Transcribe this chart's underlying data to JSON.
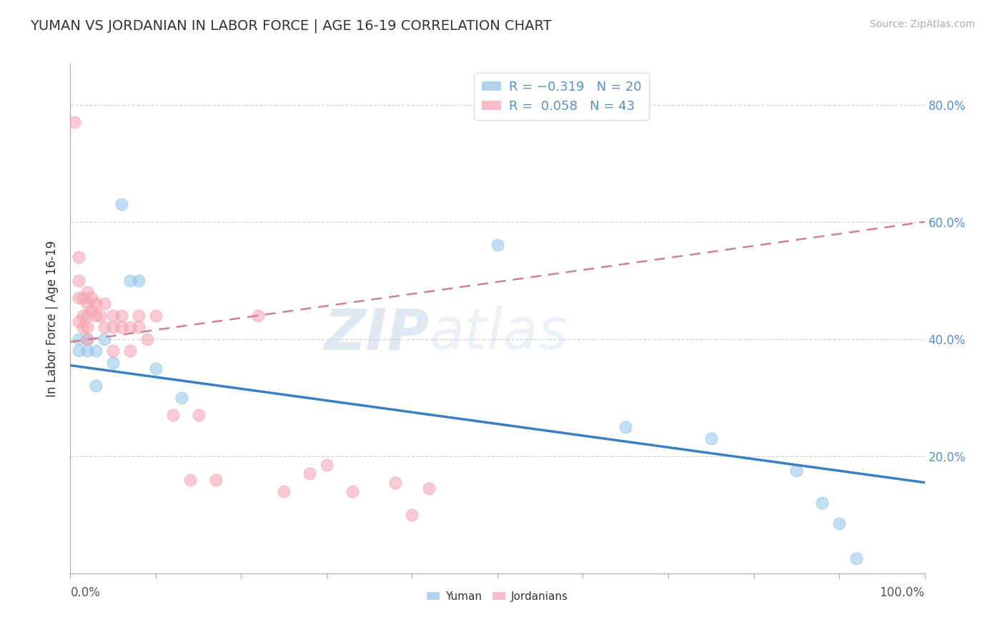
{
  "title": "YUMAN VS JORDANIAN IN LABOR FORCE | AGE 16-19 CORRELATION CHART",
  "source_text": "Source: ZipAtlas.com",
  "ylabel": "In Labor Force | Age 16-19",
  "xlim": [
    0.0,
    1.0
  ],
  "ylim": [
    0.0,
    0.87
  ],
  "xtick_positions": [
    0.0,
    0.1,
    0.2,
    0.3,
    0.4,
    0.5,
    0.6,
    0.7,
    0.8,
    0.9,
    1.0
  ],
  "ytick_positions": [
    0.0,
    0.2,
    0.4,
    0.6,
    0.8
  ],
  "watermark_text": "ZIP",
  "watermark_text2": "atlas",
  "yuman_x": [
    0.01,
    0.01,
    0.02,
    0.02,
    0.03,
    0.03,
    0.04,
    0.05,
    0.06,
    0.07,
    0.08,
    0.1,
    0.13,
    0.5,
    0.65,
    0.75,
    0.85,
    0.88,
    0.9,
    0.92
  ],
  "yuman_y": [
    0.38,
    0.4,
    0.38,
    0.4,
    0.32,
    0.38,
    0.4,
    0.36,
    0.63,
    0.5,
    0.5,
    0.35,
    0.3,
    0.56,
    0.25,
    0.23,
    0.175,
    0.12,
    0.085,
    0.025
  ],
  "jordanian_x": [
    0.005,
    0.01,
    0.01,
    0.01,
    0.01,
    0.015,
    0.015,
    0.015,
    0.02,
    0.02,
    0.02,
    0.02,
    0.02,
    0.025,
    0.025,
    0.03,
    0.03,
    0.035,
    0.04,
    0.04,
    0.05,
    0.05,
    0.05,
    0.06,
    0.06,
    0.07,
    0.07,
    0.08,
    0.08,
    0.09,
    0.1,
    0.12,
    0.14,
    0.15,
    0.17,
    0.22,
    0.25,
    0.28,
    0.3,
    0.33,
    0.38,
    0.4,
    0.42
  ],
  "jordanian_y": [
    0.77,
    0.54,
    0.5,
    0.47,
    0.43,
    0.47,
    0.44,
    0.42,
    0.48,
    0.46,
    0.44,
    0.42,
    0.4,
    0.47,
    0.45,
    0.46,
    0.44,
    0.44,
    0.46,
    0.42,
    0.44,
    0.42,
    0.38,
    0.44,
    0.42,
    0.42,
    0.38,
    0.44,
    0.42,
    0.4,
    0.44,
    0.27,
    0.16,
    0.27,
    0.16,
    0.44,
    0.14,
    0.17,
    0.185,
    0.14,
    0.155,
    0.1,
    0.145
  ],
  "blue_line_x": [
    0.0,
    1.0
  ],
  "blue_line_y": [
    0.355,
    0.155
  ],
  "pink_line_x": [
    0.0,
    1.0
  ],
  "pink_line_y": [
    0.395,
    0.6
  ],
  "bg_color": "#ffffff",
  "grid_color": "#cccccc",
  "blue_scatter_color": "#8ec4e8",
  "pink_scatter_color": "#f4a0b0",
  "blue_line_color": "#3a7ec6",
  "pink_line_color": "#d08090",
  "ytick_color": "#5590c8",
  "xtick_color": "#555555"
}
